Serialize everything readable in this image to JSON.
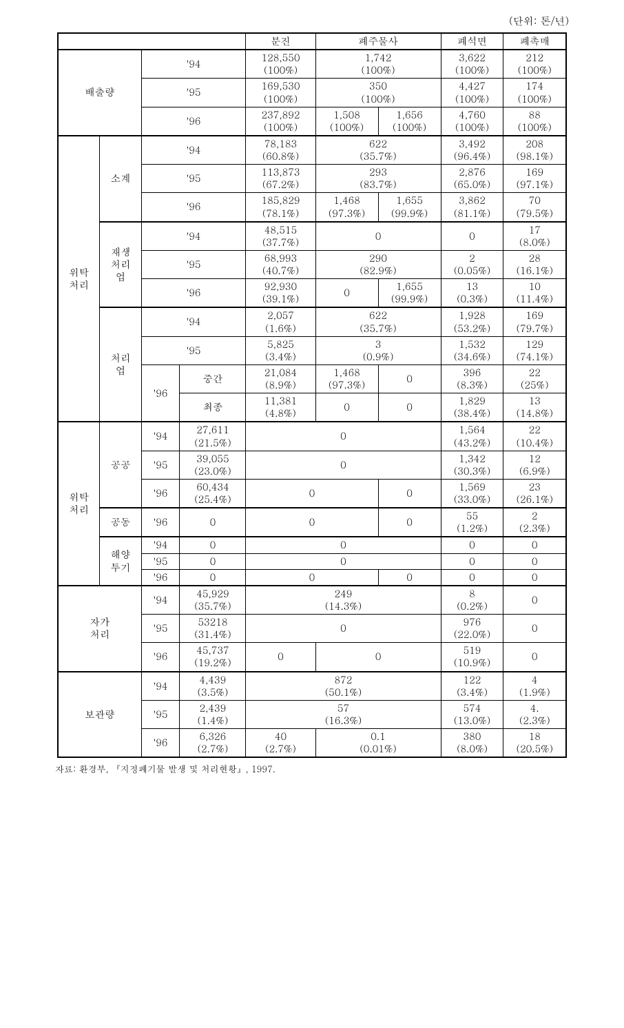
{
  "unit_label": "(단위: 톤/년)",
  "headers": {
    "dust": "분진",
    "waste_sand": "폐주물사",
    "waste_asbestos": "폐석면",
    "waste_catalyst": "폐촉매"
  },
  "row_categories": {
    "emission": "배출량",
    "consign": "위탁\n처리",
    "subtotal": "소계",
    "recycle": "재생\n처리\n업",
    "treatment": "처리\n업",
    "intermediate": "중간",
    "final": "최종",
    "public": "공공",
    "joint": "공동",
    "ocean": "해양\n투기",
    "self": "자가\n처리",
    "storage": "보관량"
  },
  "years": {
    "y94": "'94",
    "y95": "'95",
    "y96": "'96"
  },
  "emission": {
    "y94": {
      "dust": "128,550\n(100%)",
      "sand": "1,742\n(100%)",
      "asb": "3,622\n(100%)",
      "cat": "212\n(100%)"
    },
    "y95": {
      "dust": "169,530\n(100%)",
      "sand": "350\n(100%)",
      "asb": "4,427\n(100%)",
      "cat": "174\n(100%)"
    },
    "y96": {
      "dust": "237,892\n(100%)",
      "sand1": "1,508\n(100%)",
      "sand2": "1,656\n(100%)",
      "asb": "4,760\n(100%)",
      "cat": "88\n(100%)"
    }
  },
  "consign1": {
    "subtotal": {
      "y94": {
        "dust": "78,183\n(60.8%)",
        "sand": "622\n(35.7%)",
        "asb": "3,492\n(96.4%)",
        "cat": "208\n(98.1%)"
      },
      "y95": {
        "dust": "113,873\n(67.2%)",
        "sand": "293\n(83.7%)",
        "asb": "2,876\n(65.0%)",
        "cat": "169\n(97.1%)"
      },
      "y96": {
        "dust": "185,829\n(78.1%)",
        "sand1": "1,468\n(97.3%)",
        "sand2": "1,655\n(99.9%)",
        "asb": "3,862\n(81.1%)",
        "cat": "70\n(79.5%)"
      }
    },
    "recycle": {
      "y94": {
        "dust": "48,515\n(37.7%)",
        "sand": "0",
        "asb": "0",
        "cat": "17\n(8.0%)"
      },
      "y95": {
        "dust": "68,993\n(40.7%)",
        "sand": "290\n(82.9%)",
        "asb": "2\n(0.05%)",
        "cat": "28\n(16.1%)"
      },
      "y96": {
        "dust": "92,930\n(39.1%)",
        "sand1": "0",
        "sand2": "1,655\n(99.9%)",
        "asb": "13\n(0.3%)",
        "cat": "10\n(11.4%)"
      }
    },
    "treatment": {
      "y94": {
        "dust": "2,057\n(1.6%)",
        "sand": "622\n(35.7%)",
        "asb": "1,928\n(53.2%)",
        "cat": "169\n(79.7%)"
      },
      "y95": {
        "dust": "5,825\n(3.4%)",
        "sand": "3\n(0.9%)",
        "asb": "1,532\n(34.6%)",
        "cat": "129\n(74.1%)"
      },
      "y96_mid": {
        "dust": "21,084\n(8.9%)",
        "sand1": "1,468\n(97.3%)",
        "sand2": "0",
        "asb": "396\n(8.3%)",
        "cat": "22\n(25%)"
      },
      "y96_fin": {
        "dust": "11,381\n(4.8%)",
        "sand1": "0",
        "sand2": "0",
        "asb": "1,829\n(38.4%)",
        "cat": "13\n(14.8%)"
      }
    }
  },
  "consign2": {
    "public": {
      "y94": {
        "v": "27,611\n(21.5%)",
        "sand": "0",
        "asb": "1,564\n(43.2%)",
        "cat": "22\n(10.4%)"
      },
      "y95": {
        "v": "39,055\n(23.0%)",
        "sand": "0",
        "asb": "1,342\n(30.3%)",
        "cat": "12\n(6.9%)"
      },
      "y96": {
        "v": "60,434\n(25.4%)",
        "sand1": "0",
        "sand2": "0",
        "asb": "1,569\n(33.0%)",
        "cat": "23\n(26.1%)"
      }
    },
    "joint": {
      "y96": {
        "v": "0",
        "sand1": "0",
        "sand2": "0",
        "asb": "55\n(1.2%)",
        "cat": "2\n(2.3%)"
      }
    },
    "ocean": {
      "y94": {
        "v": "0",
        "sand": "0",
        "asb": "0",
        "cat": "0"
      },
      "y95": {
        "v": "0",
        "sand": "0",
        "asb": "0",
        "cat": "0"
      },
      "y96": {
        "v": "0",
        "sand1": "0",
        "sand2": "0",
        "asb": "0",
        "cat": "0"
      }
    }
  },
  "self": {
    "y94": {
      "v": "45,929\n(35.7%)",
      "sand": "249\n(14.3%)",
      "asb": "8\n(0.2%)",
      "cat": "0"
    },
    "y95": {
      "v": "53218\n(31.4%)",
      "sand": "0",
      "asb": "976\n(22.0%)",
      "cat": "0"
    },
    "y96": {
      "v": "45,737\n(19.2%)",
      "sand1": "0",
      "sand2": "0",
      "asb": "519\n(10.9%)",
      "cat": "0"
    }
  },
  "storage": {
    "y94": {
      "v": "4,439\n(3.5%)",
      "sand": "872\n(50.1%)",
      "asb": "122\n(3.4%)",
      "cat": "4\n(1.9%)"
    },
    "y95": {
      "v": "2,439\n(1.4%)",
      "sand": "57\n(16.3%)",
      "asb": "574\n(13.0%)",
      "cat": "4.\n(2.3%)"
    },
    "y96": {
      "v": "6,326\n(2.7%)",
      "sand1": "40\n(2.7%)",
      "sand2": "0.1\n(0.01%)",
      "asb": "380\n(8.0%)",
      "cat": "18\n(20.5%)"
    }
  },
  "footnote": "자료: 환경부, 『지정폐기물 발생 및 처리현황』, 1997."
}
